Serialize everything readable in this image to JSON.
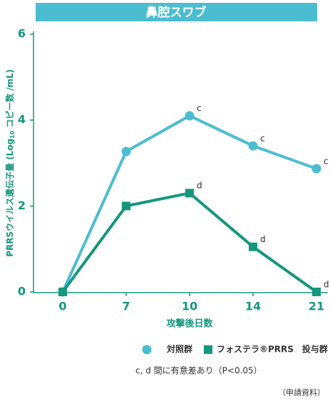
{
  "chart_data": {
    "type": "line",
    "title": "鼻腔スワブ",
    "xlabel": "攻撃後日数",
    "ylabel": [
      "PRRSウイルス遺伝子量 (Log",
      "10",
      " コピー数 /mL)"
    ],
    "categories": [
      "0",
      "7",
      "10",
      "14",
      "21"
    ],
    "ylim": [
      0,
      6
    ],
    "yticks": [
      0,
      2,
      4,
      6
    ],
    "grid": false,
    "series": [
      {
        "name": "対照群",
        "color": "#4cbdd1",
        "marker": "circle",
        "values": [
          0,
          3.27,
          4.1,
          3.4,
          2.87
        ],
        "labels": [
          null,
          null,
          "c",
          "c",
          "c"
        ]
      },
      {
        "name": "フォステラ®PRRS　投与群",
        "color": "#14977c",
        "marker": "square",
        "values": [
          0,
          2.0,
          2.3,
          1.05,
          0
        ],
        "labels": [
          null,
          null,
          "d",
          "d",
          "d"
        ]
      }
    ],
    "note": "c, d 間に有意差あり（P<0.05）",
    "source": "（申請資料）"
  }
}
